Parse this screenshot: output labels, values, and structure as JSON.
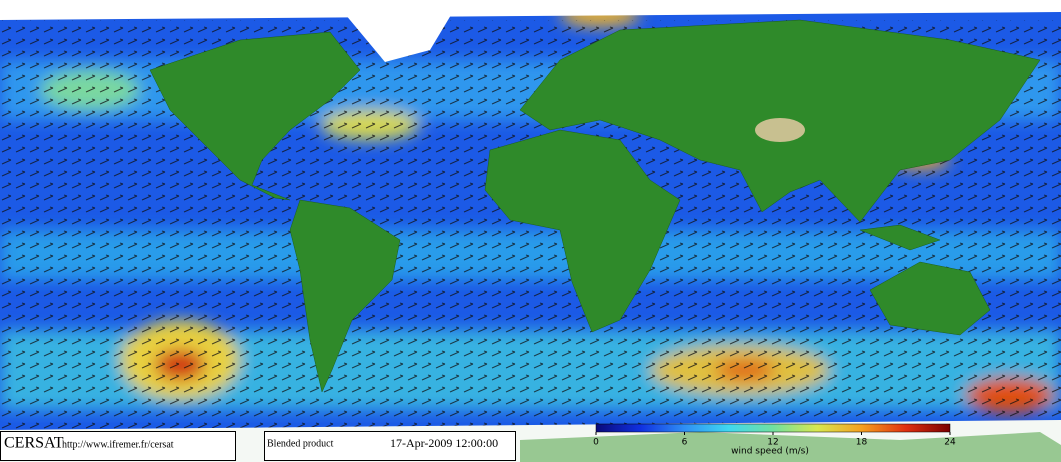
{
  "header": {
    "logo": "CERSAT",
    "url": "http://www.ifremer.fr/cersat",
    "product": "Blended product",
    "date": "17-Apr-2009 12:00:00"
  },
  "colorbar": {
    "label": "wind speed (m/s)",
    "lim": [
      0,
      24
    ],
    "ticks": [
      0,
      6,
      12,
      18,
      24
    ],
    "colors": [
      "#0a0a7a",
      "#1030e0",
      "#2f8ff5",
      "#40d8f0",
      "#70e0a0",
      "#d8e850",
      "#f5a020",
      "#e03010",
      "#7a0000"
    ]
  }
}
